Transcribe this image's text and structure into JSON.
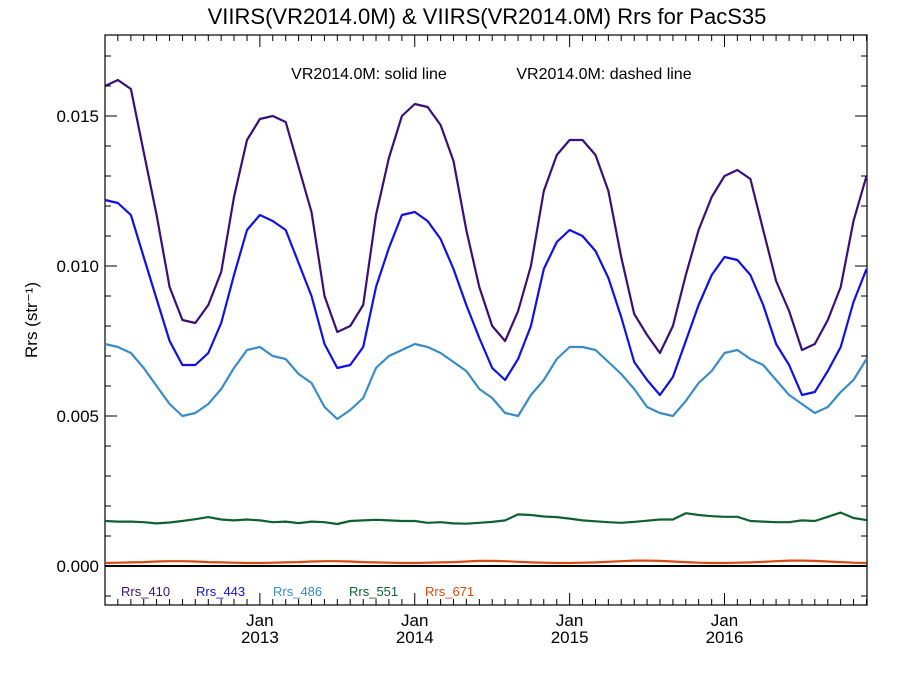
{
  "chart_data": {
    "type": "line",
    "title": "VIIRS(VR2014.0M) & VIIRS(VR2014.0M)  Rrs for PacS35",
    "annotation_solid": "VR2014.0M: solid line",
    "annotation_dashed": "VR2014.0M: dashed line",
    "ylabel": "Rrs (str⁻¹)",
    "ylim": [
      -0.0013,
      0.0177
    ],
    "xlim": [
      2012.0,
      2016.92
    ],
    "yticks": [
      {
        "value": 0.0,
        "label": "0.000"
      },
      {
        "value": 0.005,
        "label": "0.005"
      },
      {
        "value": 0.01,
        "label": "0.010"
      },
      {
        "value": 0.015,
        "label": "0.015"
      }
    ],
    "xticks": [
      {
        "value": 2013.0,
        "month": "Jan",
        "year": "2013"
      },
      {
        "value": 2014.0,
        "month": "Jan",
        "year": "2014"
      },
      {
        "value": 2015.0,
        "month": "Jan",
        "year": "2015"
      },
      {
        "value": 2016.0,
        "month": "Jan",
        "year": "2016"
      }
    ],
    "zero_line": 0.0,
    "x": [
      2012.0,
      2012.083,
      2012.167,
      2012.25,
      2012.333,
      2012.417,
      2012.5,
      2012.583,
      2012.667,
      2012.75,
      2012.833,
      2012.917,
      2013.0,
      2013.083,
      2013.167,
      2013.25,
      2013.333,
      2013.417,
      2013.5,
      2013.583,
      2013.667,
      2013.75,
      2013.833,
      2013.917,
      2014.0,
      2014.083,
      2014.167,
      2014.25,
      2014.333,
      2014.417,
      2014.5,
      2014.583,
      2014.667,
      2014.75,
      2014.833,
      2014.917,
      2015.0,
      2015.083,
      2015.167,
      2015.25,
      2015.333,
      2015.417,
      2015.5,
      2015.583,
      2015.667,
      2015.75,
      2015.833,
      2015.917,
      2016.0,
      2016.083,
      2016.167,
      2016.25,
      2016.333,
      2016.417,
      2016.5,
      2016.583,
      2016.667,
      2016.75,
      2016.833,
      2016.917
    ],
    "series": [
      {
        "name": "Rrs_410",
        "color": "#3a1078",
        "values": [
          0.016,
          0.0162,
          0.0159,
          0.0138,
          0.0117,
          0.0093,
          0.0082,
          0.0081,
          0.0087,
          0.0098,
          0.0123,
          0.0142,
          0.0149,
          0.015,
          0.0148,
          0.0133,
          0.0118,
          0.009,
          0.0078,
          0.008,
          0.0087,
          0.0117,
          0.0136,
          0.015,
          0.0154,
          0.0153,
          0.0147,
          0.0135,
          0.0112,
          0.0093,
          0.008,
          0.0075,
          0.0085,
          0.01,
          0.0125,
          0.0137,
          0.0142,
          0.0142,
          0.0137,
          0.0125,
          0.0103,
          0.0084,
          0.0077,
          0.0071,
          0.008,
          0.0097,
          0.0112,
          0.0123,
          0.013,
          0.0132,
          0.0129,
          0.0112,
          0.0095,
          0.0085,
          0.0072,
          0.0074,
          0.0082,
          0.0093,
          0.0115,
          0.013
        ]
      },
      {
        "name": "Rrs_443",
        "color": "#1010e8",
        "values": [
          0.0122,
          0.0121,
          0.0117,
          0.0103,
          0.0089,
          0.0075,
          0.0067,
          0.0067,
          0.0071,
          0.0081,
          0.0097,
          0.0112,
          0.0117,
          0.0115,
          0.0112,
          0.0101,
          0.009,
          0.0074,
          0.0066,
          0.0067,
          0.0073,
          0.0093,
          0.0106,
          0.0117,
          0.0118,
          0.0115,
          0.0109,
          0.0099,
          0.0087,
          0.0076,
          0.0066,
          0.0062,
          0.0069,
          0.008,
          0.0099,
          0.0108,
          0.0112,
          0.011,
          0.0105,
          0.0096,
          0.0083,
          0.0068,
          0.0062,
          0.0057,
          0.0063,
          0.0075,
          0.0087,
          0.0097,
          0.0103,
          0.0102,
          0.0097,
          0.0087,
          0.0074,
          0.0067,
          0.0057,
          0.0058,
          0.0065,
          0.0073,
          0.0088,
          0.0099
        ]
      },
      {
        "name": "Rrs_486",
        "color": "#3a8cc8",
        "values": [
          0.0074,
          0.0073,
          0.0071,
          0.0066,
          0.006,
          0.0054,
          0.005,
          0.0051,
          0.0054,
          0.0059,
          0.0066,
          0.0072,
          0.0073,
          0.007,
          0.0069,
          0.0064,
          0.0061,
          0.0053,
          0.0049,
          0.0052,
          0.0056,
          0.0066,
          0.007,
          0.0072,
          0.0074,
          0.0073,
          0.0071,
          0.0068,
          0.0065,
          0.0059,
          0.0056,
          0.0051,
          0.005,
          0.0057,
          0.0062,
          0.0069,
          0.0073,
          0.0073,
          0.0072,
          0.0068,
          0.0064,
          0.0059,
          0.0053,
          0.0051,
          0.005,
          0.0055,
          0.0061,
          0.0065,
          0.0071,
          0.0072,
          0.0069,
          0.0067,
          0.0062,
          0.0057,
          0.0054,
          0.0051,
          0.0053,
          0.0058,
          0.0062,
          0.0069
        ]
      },
      {
        "name": "Rrs_551",
        "color": "#0f6130",
        "values": [
          0.0015,
          0.00148,
          0.00148,
          0.00146,
          0.00142,
          0.00145,
          0.0015,
          0.00156,
          0.00163,
          0.00155,
          0.00152,
          0.00155,
          0.00152,
          0.00146,
          0.00148,
          0.00143,
          0.00148,
          0.00146,
          0.0014,
          0.0015,
          0.00152,
          0.00154,
          0.00152,
          0.0015,
          0.0015,
          0.00144,
          0.00146,
          0.00142,
          0.00141,
          0.00144,
          0.00147,
          0.00152,
          0.00172,
          0.0017,
          0.00165,
          0.00163,
          0.00158,
          0.00152,
          0.00149,
          0.00146,
          0.00144,
          0.00147,
          0.00151,
          0.00155,
          0.00155,
          0.00176,
          0.0017,
          0.00166,
          0.00164,
          0.00164,
          0.0015,
          0.00148,
          0.00146,
          0.00146,
          0.00152,
          0.0015,
          0.00164,
          0.00178,
          0.0016,
          0.00153
        ]
      },
      {
        "name": "Rrs_671",
        "color": "#d84a12",
        "values": [
          0.0001,
          0.00011,
          0.00012,
          0.00013,
          0.00015,
          0.00016,
          0.00016,
          0.00015,
          0.00013,
          0.00012,
          0.00011,
          0.0001,
          0.0001,
          0.00011,
          0.00012,
          0.00013,
          0.00015,
          0.00016,
          0.00016,
          0.00015,
          0.00013,
          0.00012,
          0.00011,
          0.0001,
          0.0001,
          0.00011,
          0.00012,
          0.00013,
          0.00015,
          0.00017,
          0.00017,
          0.00016,
          0.00014,
          0.00012,
          0.00011,
          0.0001,
          0.0001,
          0.00011,
          0.00012,
          0.00014,
          0.00016,
          0.00018,
          0.00018,
          0.00017,
          0.00015,
          0.00013,
          0.00011,
          0.0001,
          0.0001,
          0.00011,
          0.00012,
          0.00014,
          0.00016,
          0.00018,
          0.00018,
          0.00017,
          0.00015,
          0.00013,
          0.00011,
          0.0001
        ]
      }
    ],
    "grid": false,
    "legend_position": "bottom-left"
  }
}
